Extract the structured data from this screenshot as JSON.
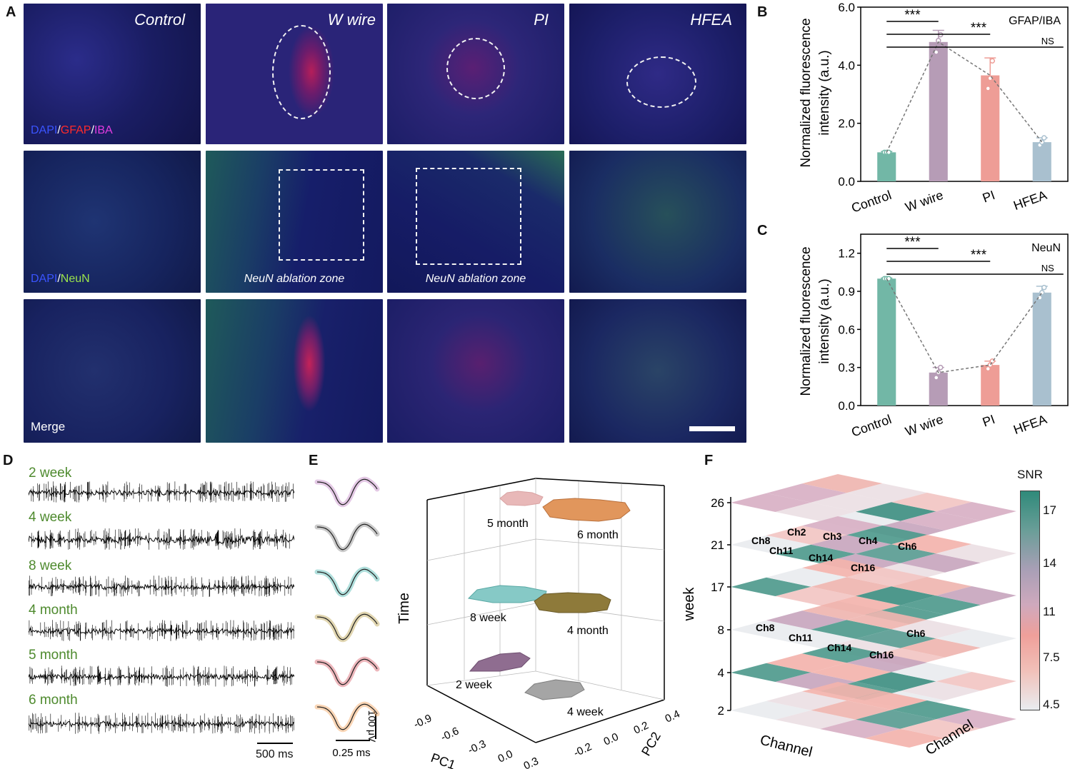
{
  "panel_labels": {
    "A": "A",
    "B": "B",
    "C": "C",
    "D": "D",
    "E": "E",
    "F": "F"
  },
  "panel_a": {
    "columns": [
      "Control",
      "W wire",
      "PI",
      "HFEA"
    ],
    "stain_gfap": {
      "dapi": "DAPI",
      "sep1": "/",
      "gfap": "GFAP",
      "sep2": "/",
      "iba": "IBA"
    },
    "stain_neun": {
      "dapi": "DAPI",
      "sep1": "/",
      "neun": "NeuN"
    },
    "merge_label": "Merge",
    "ablation_label": "NeuN ablation zone"
  },
  "colors": {
    "control": "#72b7a6",
    "wwire": "#b69cb6",
    "pi": "#ee9d96",
    "hfea": "#a9c0cf",
    "dapi": "#3a54ff",
    "gfap": "#ff2a2a",
    "iba": "#e23ce0",
    "neun": "#9be54b",
    "time_label": "#4e8a2e",
    "snr_high": "#2f8a7a",
    "snr_low": "#e9ecef"
  },
  "chart_b": {
    "type": "bar",
    "ylabel_line1": "Normalized fluorescence",
    "ylabel_line2": "intensity (a.u.)",
    "categories": [
      "Control",
      "W wire",
      "PI",
      "HFEA"
    ],
    "values": [
      1.0,
      4.8,
      3.65,
      1.35
    ],
    "errors": [
      0.03,
      0.4,
      0.6,
      0.15
    ],
    "points": [
      [
        1.0,
        1.0,
        1.0
      ],
      [
        4.45,
        4.85,
        5.05
      ],
      [
        3.2,
        3.55,
        4.15
      ],
      [
        1.25,
        1.35,
        1.5
      ]
    ],
    "ylim": [
      0,
      6.0
    ],
    "yticks": [
      "0.0",
      "2.0",
      "4.0",
      "6.0"
    ],
    "legend": "GFAP/IBA",
    "sig": [
      "***",
      "***",
      "NS"
    ]
  },
  "chart_c": {
    "type": "bar",
    "ylabel_line1": "Normalized fluorescence",
    "ylabel_line2": "intensity (a.u.)",
    "categories": [
      "Control",
      "W wire",
      "PI",
      "HFEA"
    ],
    "values": [
      1.0,
      0.26,
      0.32,
      0.89
    ],
    "errors": [
      0.005,
      0.04,
      0.03,
      0.05
    ],
    "points": [
      [
        1.0,
        1.0,
        1.0
      ],
      [
        0.22,
        0.26,
        0.3
      ],
      [
        0.29,
        0.32,
        0.35
      ],
      [
        0.85,
        0.89,
        0.93
      ]
    ],
    "ylim": [
      0,
      1.35
    ],
    "yticks": [
      "0.0",
      "0.3",
      "0.6",
      "0.9",
      "1.2"
    ],
    "legend": "NeuN",
    "sig": [
      "***",
      "***",
      "NS"
    ]
  },
  "panel_d": {
    "labels": [
      "2 week",
      "4 week",
      "8 week",
      "4 month",
      "5 month",
      "6 month"
    ],
    "scale": "500 ms"
  },
  "panel_e": {
    "waveform_colors": [
      "#c387c6",
      "#8a8a8a",
      "#4fb7b2",
      "#bca553",
      "#d6606b",
      "#f2a25a"
    ],
    "scale_v": "100 μV",
    "scale_t": "0.25 ms",
    "clusters": [
      "5 month",
      "6 month",
      "8 week",
      "4 month",
      "2 week",
      "4 week"
    ],
    "axis_time": "Time",
    "axis_pc1": "PC1",
    "axis_pc2": "PC2",
    "pc1_ticks": [
      "-0.9",
      "-0.6",
      "-0.3",
      "0.0",
      "0.3"
    ],
    "pc2_ticks": [
      "0.4",
      "0.2",
      "0.0",
      "-0.2"
    ]
  },
  "panel_f": {
    "ylabel": "week",
    "yticks": [
      "26",
      "21",
      "17",
      "8",
      "4",
      "2"
    ],
    "xlabel1": "Channel",
    "xlabel2": "Channel",
    "colorbar_title": "SNR",
    "colorbar_ticks": [
      "17",
      "14",
      "11",
      "7.5",
      "4.5"
    ],
    "channels_upper": [
      "Ch8",
      "Ch2",
      "Ch3",
      "Ch4",
      "Ch6",
      "Ch11",
      "Ch14",
      "Ch16"
    ],
    "channels_lower": [
      "Ch8",
      "Ch11",
      "Ch14",
      "Ch16",
      "Ch6"
    ]
  }
}
